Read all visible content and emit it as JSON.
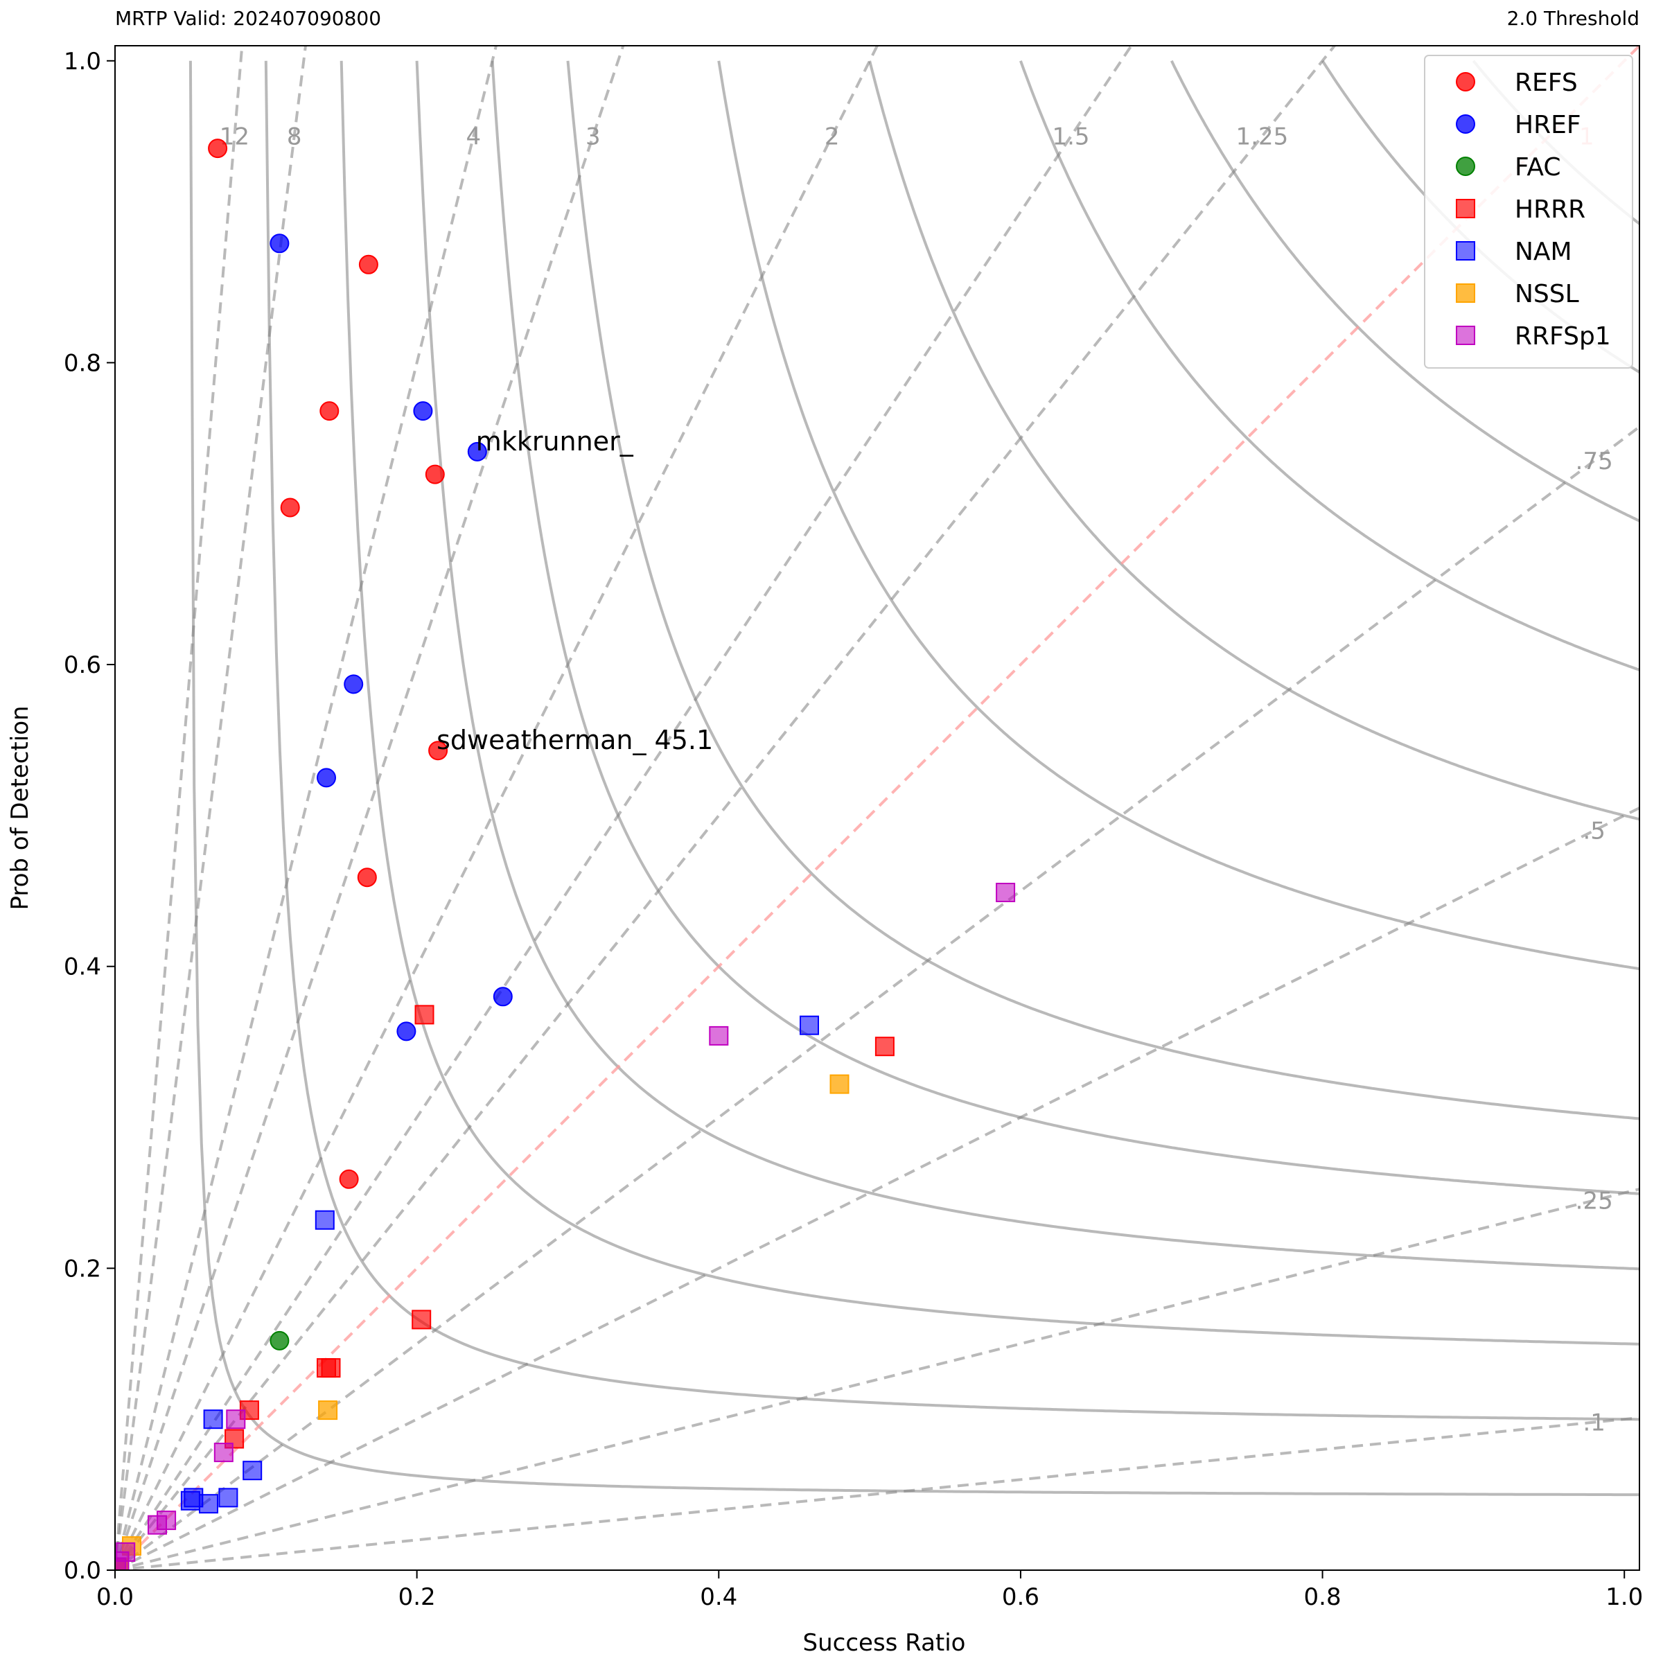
{
  "header": {
    "left_title": "MRTP Valid: 202407090800",
    "right_title": "2.0 Threshold"
  },
  "chart_data": {
    "type": "scatter",
    "title": "",
    "xlabel": "Success Ratio",
    "ylabel": "Prob of Detection",
    "xlim": [
      0,
      1.01
    ],
    "ylim": [
      0,
      1.01
    ],
    "x_ticks": [
      0.0,
      0.2,
      0.4,
      0.6,
      0.8,
      1.0
    ],
    "x_tick_labels": [
      "0.0",
      "0.2",
      "0.4",
      "0.6",
      "0.8",
      "1.0"
    ],
    "y_ticks": [
      0.0,
      0.2,
      0.4,
      0.6,
      0.8,
      1.0
    ],
    "y_tick_labels": [
      "0.0",
      "0.2",
      "0.4",
      "0.6",
      "0.8",
      "1.0"
    ],
    "grid": false,
    "legend_position": "top-right",
    "bias_lines": {
      "values": [
        12,
        8,
        4,
        3,
        2,
        1.5,
        1.25,
        1,
        0.75,
        0.5,
        0.25,
        0.1
      ],
      "labels": [
        "12",
        "8",
        "4",
        "3",
        "2",
        "1.5",
        "1.25",
        "1",
        ".75",
        ".5",
        ".25",
        ".1"
      ],
      "color": "#808080",
      "unit_bias_color": "#ff9999"
    },
    "csi_lines": {
      "values": [
        0.05,
        0.1,
        0.15,
        0.2,
        0.25,
        0.3,
        0.4,
        0.5,
        0.6,
        0.7,
        0.8,
        0.9
      ],
      "color": "#808080"
    },
    "series": [
      {
        "name": "REFS",
        "marker": "circle",
        "color": "#ff0000",
        "alpha": 0.75,
        "x": [
          0.068,
          0.168,
          0.142,
          0.212,
          0.116,
          0.214,
          0.167,
          0.155
        ],
        "y": [
          0.942,
          0.865,
          0.768,
          0.726,
          0.704,
          0.543,
          0.459,
          0.259
        ]
      },
      {
        "name": "HREF",
        "marker": "circle",
        "color": "#0000ff",
        "alpha": 0.75,
        "x": [
          0.109,
          0.204,
          0.24,
          0.158,
          0.14,
          0.257,
          0.193
        ],
        "y": [
          0.879,
          0.768,
          0.741,
          0.587,
          0.525,
          0.38,
          0.357
        ]
      },
      {
        "name": "FAC",
        "marker": "circle",
        "color": "#008000",
        "alpha": 0.75,
        "x": [
          0.109
        ],
        "y": [
          0.152
        ]
      },
      {
        "name": "HRRR",
        "marker": "square",
        "color": "#ff0000",
        "alpha": 0.65,
        "x": [
          0.205,
          0.51,
          0.203,
          0.143,
          0.14,
          0.089,
          0.079,
          0.0,
          0.002
        ],
        "y": [
          0.368,
          0.347,
          0.166,
          0.134,
          0.134,
          0.106,
          0.087,
          0.0,
          0.002
        ]
      },
      {
        "name": "NAM",
        "marker": "square",
        "color": "#0000ff",
        "alpha": 0.55,
        "x": [
          0.46,
          0.139,
          0.065,
          0.091,
          0.075,
          0.05,
          0.062,
          0.052
        ],
        "y": [
          0.361,
          0.232,
          0.1,
          0.066,
          0.048,
          0.046,
          0.044,
          0.048
        ]
      },
      {
        "name": "NSSL",
        "marker": "square",
        "color": "#ffa500",
        "alpha": 0.75,
        "x": [
          0.48,
          0.141,
          0.011,
          0.002
        ],
        "y": [
          0.322,
          0.106,
          0.016,
          0.002
        ]
      },
      {
        "name": "RRFSp1",
        "marker": "square",
        "color": "#c000c0",
        "alpha": 0.55,
        "x": [
          0.59,
          0.4,
          0.08,
          0.072,
          0.034,
          0.028,
          0.007,
          0.003,
          0.001
        ],
        "y": [
          0.449,
          0.354,
          0.1,
          0.078,
          0.033,
          0.03,
          0.012,
          0.006,
          0.002
        ]
      }
    ],
    "annotations": [
      {
        "text": "mkkrunner_",
        "x": 0.24,
        "y": 0.741
      },
      {
        "text": "sdweatherman_ 45.1",
        "x": 0.214,
        "y": 0.543
      }
    ]
  }
}
